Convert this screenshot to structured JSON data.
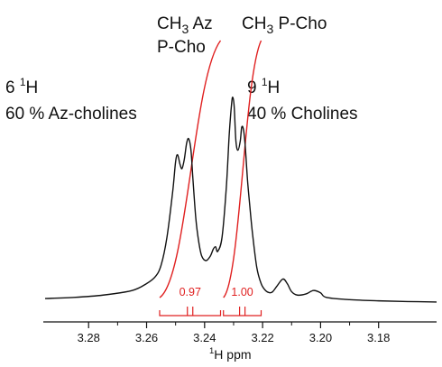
{
  "chart_data": {
    "type": "line",
    "title": "",
    "xlabel": "1H ppm",
    "xlabel_parts": {
      "sup": "1",
      "main": "H ppm"
    },
    "x_reversed": true,
    "xlim": [
      3.295,
      3.16
    ],
    "ylim": [
      0,
      1
    ],
    "x_ticks": [
      "3.28",
      "3.26",
      "3.24",
      "3.22",
      "3.20",
      "3.18"
    ],
    "grid": false,
    "series": [
      {
        "color": "#111111",
        "x": [
          3.295,
          3.285,
          3.275,
          3.265,
          3.26,
          3.257,
          3.255,
          3.253,
          3.251,
          3.25,
          3.2493,
          3.2485,
          3.2478,
          3.247,
          3.2462,
          3.2455,
          3.2447,
          3.244,
          3.243,
          3.242,
          3.241,
          3.2395,
          3.238,
          3.237,
          3.2362,
          3.2355,
          3.234,
          3.2325,
          3.2315,
          3.2307,
          3.2303,
          3.2298,
          3.2292,
          3.2285,
          3.2277,
          3.2272,
          3.2266,
          3.226,
          3.2252,
          3.2245,
          3.2235,
          3.222,
          3.2205,
          3.219,
          3.2175,
          3.2165,
          3.215,
          3.213,
          3.2115,
          3.21,
          3.208,
          3.205,
          3.2025,
          3.2,
          3.198,
          3.19,
          3.18,
          3.17,
          3.16
        ],
        "y": [
          0.035,
          0.04,
          0.05,
          0.07,
          0.1,
          0.13,
          0.18,
          0.3,
          0.5,
          0.63,
          0.66,
          0.62,
          0.6,
          0.64,
          0.71,
          0.73,
          0.68,
          0.55,
          0.38,
          0.28,
          0.22,
          0.2,
          0.22,
          0.25,
          0.26,
          0.24,
          0.3,
          0.52,
          0.75,
          0.88,
          0.91,
          0.87,
          0.72,
          0.68,
          0.72,
          0.78,
          0.77,
          0.7,
          0.55,
          0.45,
          0.32,
          0.17,
          0.1,
          0.07,
          0.06,
          0.065,
          0.09,
          0.12,
          0.1,
          0.065,
          0.05,
          0.055,
          0.07,
          0.06,
          0.04,
          0.03,
          0.025,
          0.022,
          0.02
        ]
      }
    ],
    "integrals": [
      {
        "label": "0.97",
        "x_from": 3.2555,
        "x_to": 3.2345,
        "color": "#e02020"
      },
      {
        "label": "1.00",
        "x_from": 3.2335,
        "x_to": 3.2205,
        "color": "#e02020"
      }
    ],
    "annotations": [
      {
        "name": "group-left",
        "line1_pre": "CH",
        "line1_sub": "3",
        "line1_post": " Az",
        "line2": "P-Cho"
      },
      {
        "name": "group-right",
        "line1_pre": "CH",
        "line1_sub": "3",
        "line1_post": " P-Cho"
      },
      {
        "name": "left-count",
        "line1_pre": "6 ",
        "line1_sup": "1",
        "line1_post": "H",
        "line2": "60 % Az-cholines"
      },
      {
        "name": "right-count",
        "line1_pre": "9 ",
        "line1_sup": "1",
        "line1_post": "H",
        "line2": "40 % Cholines"
      }
    ]
  }
}
